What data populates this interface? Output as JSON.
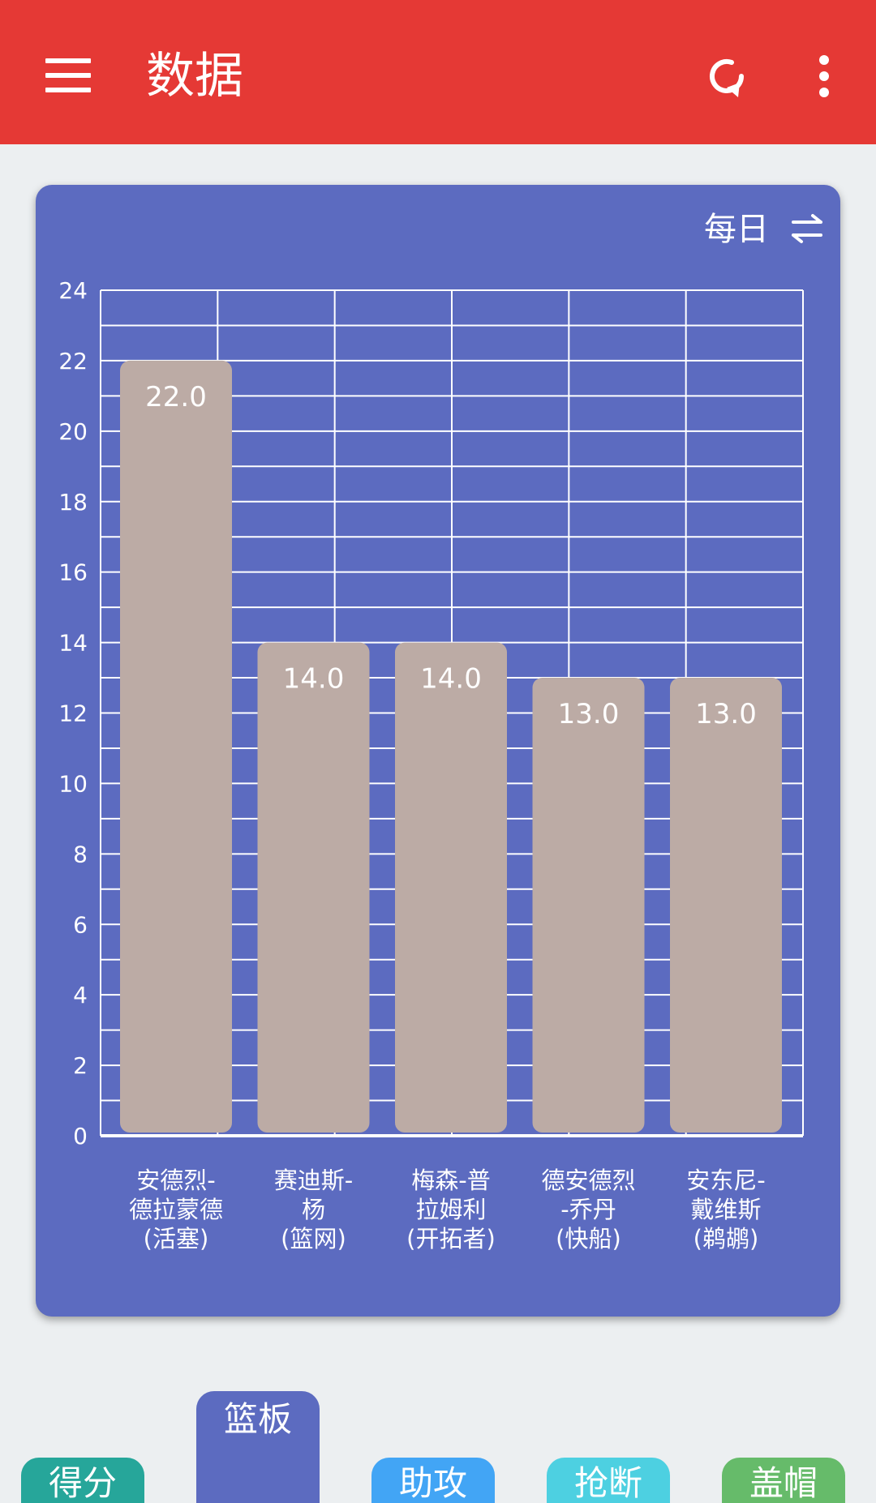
{
  "app_bar": {
    "title": "数据",
    "menu_icon": "menu-icon",
    "refresh_icon": "refresh-icon",
    "more_icon": "more-vert-icon"
  },
  "card": {
    "period_label": "每日",
    "swap_icon": "swap-horizontal-icon"
  },
  "chart_data": {
    "type": "bar",
    "categories": [
      [
        "安德烈-",
        "德拉蒙德",
        "(活塞)"
      ],
      [
        "赛迪斯-",
        "杨",
        "(篮网)"
      ],
      [
        "梅森-普",
        "拉姆利",
        "(开拓者)"
      ],
      [
        "德安德烈",
        "-乔丹",
        "(快船)"
      ],
      [
        "安东尼-",
        "戴维斯",
        "(鹈鹕)"
      ]
    ],
    "values": [
      22.0,
      14.0,
      14.0,
      13.0,
      13.0
    ],
    "value_labels": [
      "22.0",
      "14.0",
      "14.0",
      "13.0",
      "13.0"
    ],
    "y_ticks": [
      0,
      2,
      4,
      6,
      8,
      10,
      12,
      14,
      16,
      18,
      20,
      22,
      24
    ],
    "ylim": [
      0,
      24
    ],
    "grid": true,
    "colors": {
      "bar": "#bcaba5",
      "grid": "#ffffff",
      "background": "#5c6bc0"
    }
  },
  "tabs": [
    {
      "label": "得分",
      "color": "#26a69a",
      "selected": false
    },
    {
      "label": "篮板",
      "color": "#5c6bc0",
      "selected": true
    },
    {
      "label": "助攻",
      "color": "#42a5f5",
      "selected": false
    },
    {
      "label": "抢断",
      "color": "#4dd0e1",
      "selected": false
    },
    {
      "label": "盖帽",
      "color": "#66bb6a",
      "selected": false
    }
  ]
}
